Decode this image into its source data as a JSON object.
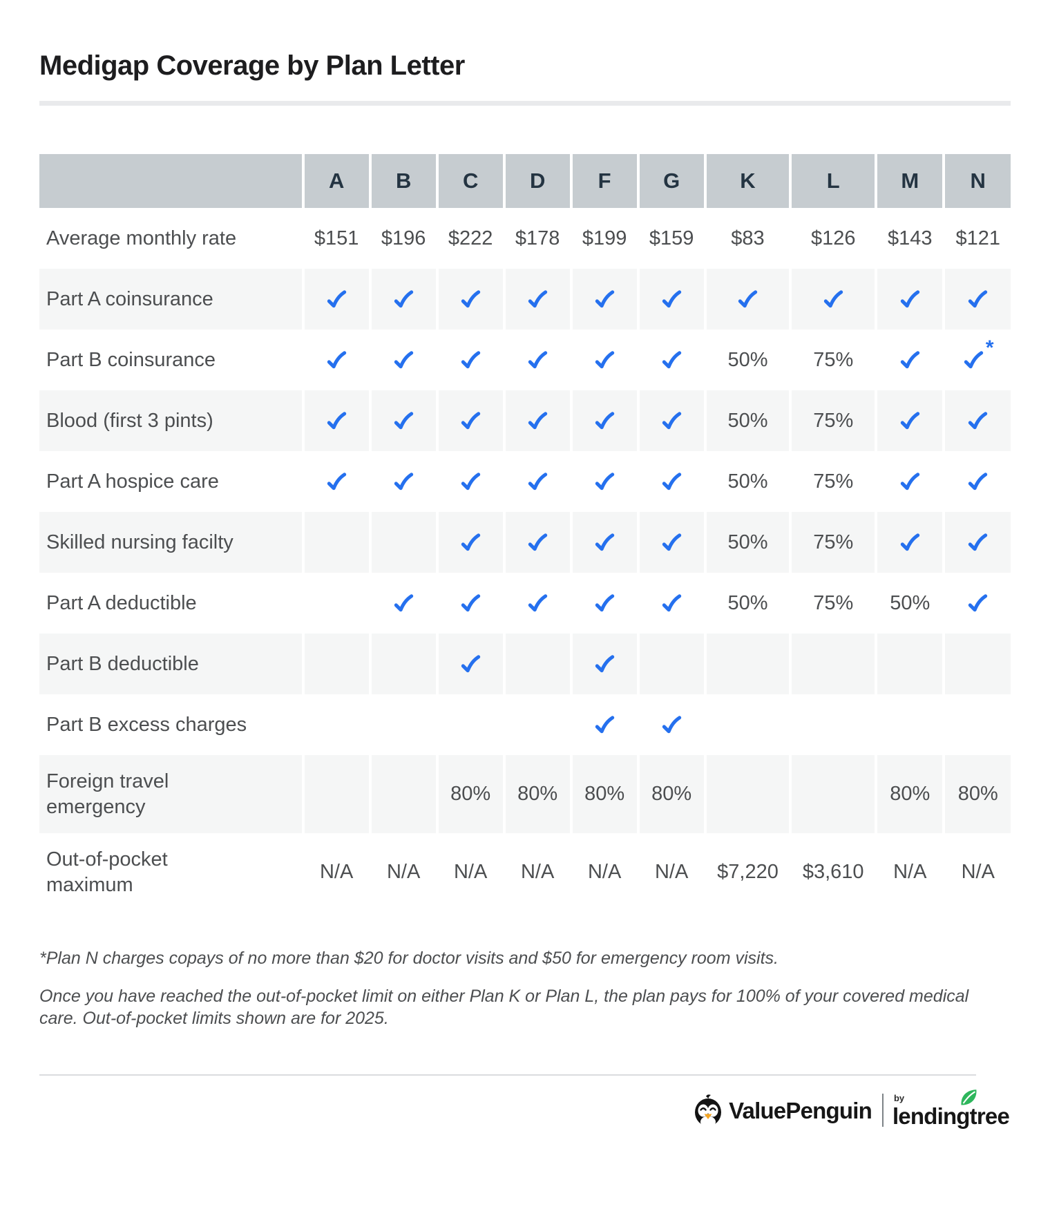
{
  "colors": {
    "check_blue": "#2570ee",
    "header_bg": "#c6ccd0",
    "stripe_bg": "#f5f6f6",
    "leaf_green": "#2eb65c",
    "beak_orange": "#f5a623"
  },
  "chart_data": {
    "type": "table",
    "title": "Medigap Coverage by Plan Letter",
    "columns": [
      "A",
      "B",
      "C",
      "D",
      "F",
      "G",
      "K",
      "L",
      "M",
      "N"
    ],
    "rows": [
      {
        "label": "Average monthly rate",
        "values": [
          "$151",
          "$196",
          "$222",
          "$178",
          "$199",
          "$159",
          "$83",
          "$126",
          "$143",
          "$121"
        ]
      },
      {
        "label": "Part A coinsurance",
        "values": [
          "check",
          "check",
          "check",
          "check",
          "check",
          "check",
          "check",
          "check",
          "check",
          "check"
        ]
      },
      {
        "label": "Part B coinsurance",
        "values": [
          "check",
          "check",
          "check",
          "check",
          "check",
          "check",
          "50%",
          "75%",
          "check",
          "check*"
        ]
      },
      {
        "label": "Blood (first 3 pints)",
        "values": [
          "check",
          "check",
          "check",
          "check",
          "check",
          "check",
          "50%",
          "75%",
          "check",
          "check"
        ]
      },
      {
        "label": "Part A hospice care",
        "values": [
          "check",
          "check",
          "check",
          "check",
          "check",
          "check",
          "50%",
          "75%",
          "check",
          "check"
        ]
      },
      {
        "label": "Skilled nursing facilty",
        "values": [
          "",
          "",
          "check",
          "check",
          "check",
          "check",
          "50%",
          "75%",
          "check",
          "check"
        ]
      },
      {
        "label": "Part A deductible",
        "values": [
          "",
          "check",
          "check",
          "check",
          "check",
          "check",
          "50%",
          "75%",
          "50%",
          "check"
        ]
      },
      {
        "label": "Part B deductible",
        "values": [
          "",
          "",
          "check",
          "",
          "check",
          "",
          "",
          "",
          "",
          ""
        ]
      },
      {
        "label": "Part B excess charges",
        "values": [
          "",
          "",
          "",
          "",
          "check",
          "check",
          "",
          "",
          "",
          ""
        ]
      },
      {
        "label": "Foreign travel\nemergency",
        "values": [
          "",
          "",
          "80%",
          "80%",
          "80%",
          "80%",
          "",
          "",
          "80%",
          "80%"
        ]
      },
      {
        "label": "Out-of-pocket\nmaximum",
        "values": [
          "N/A",
          "N/A",
          "N/A",
          "N/A",
          "N/A",
          "N/A",
          "$7,220",
          "$3,610",
          "N/A",
          "N/A"
        ]
      }
    ],
    "check_marker": "check",
    "footnote_marker": "*"
  },
  "footnotes": [
    "*Plan N charges copays of no more than $20 for doctor visits and $50 for emergency room visits.",
    "Once you have reached the out-of-pocket limit on either Plan K or Plan L, the plan pays for 100% of your covered medical care. Out-of-pocket limits shown are for 2025."
  ],
  "footer": {
    "brand": "ValuePenguin",
    "by": "by",
    "partner": "lendingtree"
  }
}
